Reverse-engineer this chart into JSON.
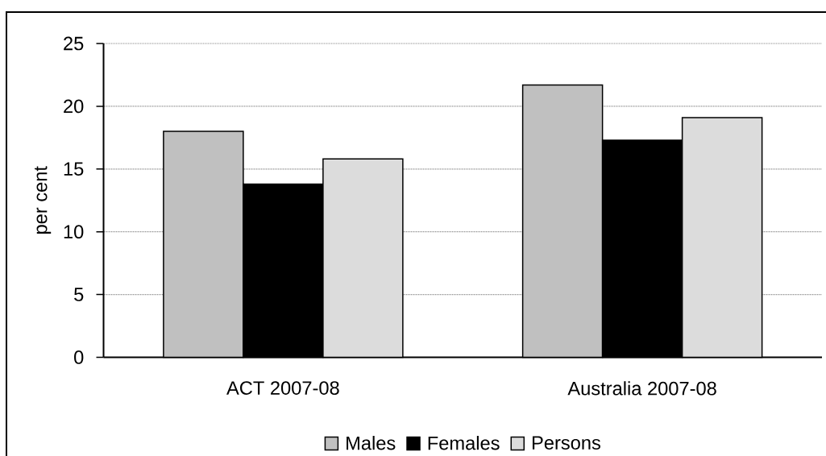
{
  "chart_data": {
    "type": "bar",
    "categories": [
      "ACT 2007-08",
      "Australia 2007-08"
    ],
    "ylabel": "per cent",
    "series": [
      {
        "name": "Males",
        "color": "#c0c0c0",
        "values": [
          18.0,
          21.7
        ]
      },
      {
        "name": "Females",
        "color": "#000000",
        "values": [
          13.8,
          17.3
        ]
      },
      {
        "name": "Persons",
        "color": "#dcdcdc",
        "values": [
          15.8,
          19.1
        ]
      }
    ],
    "ylim": [
      0,
      25
    ],
    "yticks": [
      0,
      5,
      10,
      15,
      20,
      25
    ],
    "grid": "y",
    "legend": "bottom"
  }
}
